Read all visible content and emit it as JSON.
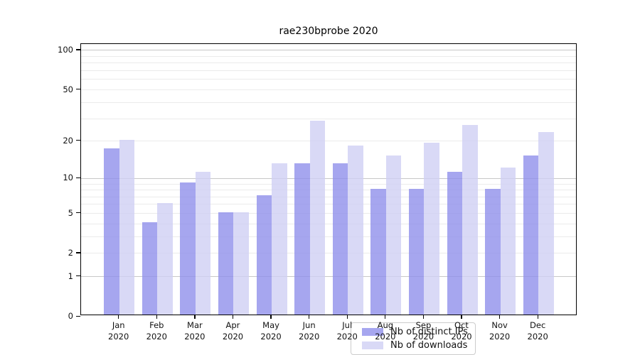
{
  "page_title": "rae230bprobe 2020",
  "chart_data": {
    "type": "bar",
    "title": "rae230bprobe 2020",
    "categories": [
      "Jan",
      "Feb",
      "Mar",
      "Apr",
      "May",
      "Jun",
      "Jul",
      "Aug",
      "Sep",
      "Oct",
      "Nov",
      "Dec"
    ],
    "category_year": "2020",
    "series": [
      {
        "name": "Nb of distinct IPs",
        "color": "rgba(144,144,235,0.8)",
        "values": [
          17,
          4,
          9,
          5,
          7,
          13,
          13,
          8,
          8,
          11,
          8,
          15
        ]
      },
      {
        "name": "Nb of downloads",
        "color": "rgba(208,208,244,0.8)",
        "values": [
          20,
          6,
          11,
          5,
          13,
          28,
          18,
          15,
          19,
          26,
          12,
          23
        ]
      }
    ],
    "xlabel": "",
    "ylabel": "",
    "y_scale": "log10(1+value)",
    "ylim": [
      0,
      112
    ],
    "y_tick_labels": [
      100,
      50,
      20,
      10,
      5,
      2,
      1,
      0
    ],
    "y_gridlines_major": [
      1,
      10,
      100
    ],
    "y_gridlines_minor": [
      2,
      3,
      4,
      5,
      6,
      7,
      8,
      9,
      20,
      30,
      40,
      50,
      60,
      70,
      80,
      90
    ],
    "grid": true,
    "legend_position": "lower center"
  },
  "colors": {
    "bar_distinct_ips": "rgba(144,144,235,0.8)",
    "bar_downloads": "rgba(208,208,244,0.8)",
    "grid_major": "#c8c8c8",
    "grid_minor": "#ebebeb",
    "axis": "#000000",
    "background": "#ffffff"
  }
}
